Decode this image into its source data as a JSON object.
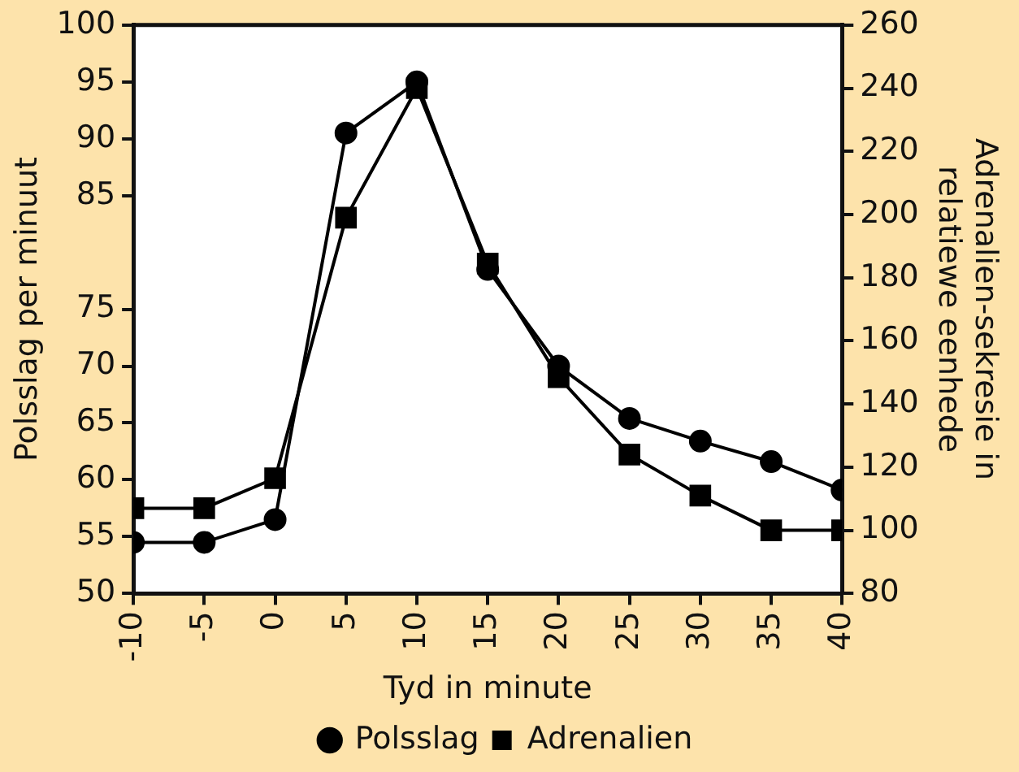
{
  "chart_data": {
    "type": "line",
    "xlabel": "Tyd in minute",
    "ylabel": "Polsslag per minuut",
    "y2label": "Adrenalien-sekresie in\nrelatiewe eenhede",
    "x": [
      -10,
      -5,
      0,
      5,
      10,
      15,
      20,
      25,
      30,
      35,
      40
    ],
    "xlim": [
      -10,
      40
    ],
    "xticks": [
      -10,
      -5,
      0,
      5,
      10,
      15,
      20,
      25,
      30,
      35,
      40
    ],
    "ylim": [
      50,
      100
    ],
    "yticks": [
      50,
      55,
      60,
      65,
      70,
      75,
      85,
      90,
      95,
      100
    ],
    "y2lim": [
      80,
      260
    ],
    "y2ticks": [
      80,
      100,
      120,
      140,
      160,
      180,
      200,
      220,
      240,
      260
    ],
    "series": [
      {
        "name": "Polsslag",
        "color": "#000000",
        "marker": "circle",
        "values": [
          54.5,
          54.5,
          56.5,
          90.5,
          95,
          78.5,
          70,
          65.4,
          63.4,
          61.6,
          59.1
        ]
      },
      {
        "name": "Adrenalien",
        "color": "#000000",
        "marker": "square",
        "axis": "y2",
        "values": [
          107,
          107,
          116.5,
          199,
          240,
          184.5,
          148.5,
          124,
          111,
          100,
          100
        ]
      }
    ],
    "grid": false,
    "legend": "bottom",
    "line_style": "solid"
  }
}
